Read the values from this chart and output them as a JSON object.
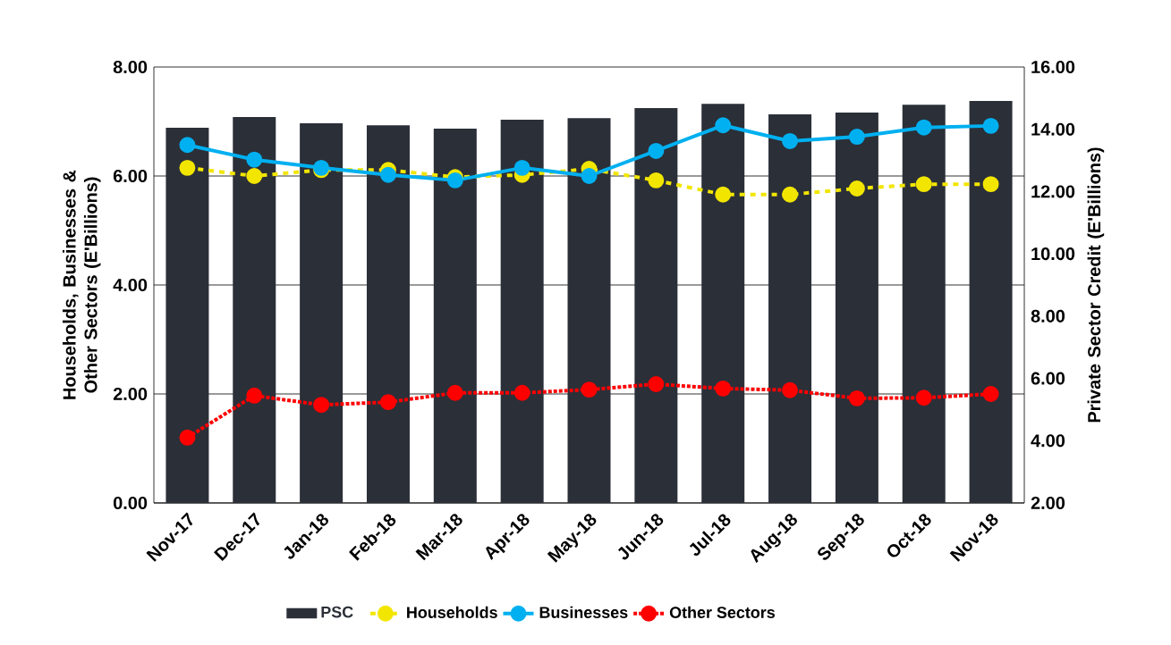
{
  "chart_data": {
    "type": "line",
    "categories": [
      "Nov-17",
      "Dec-17",
      "Jan-18",
      "Feb-18",
      "Mar-18",
      "Apr-18",
      "May-18",
      "Jun-18",
      "Jul-18",
      "Aug-18",
      "Sep-18",
      "Oct-18",
      "Nov-18"
    ],
    "series": [
      {
        "name": "PSC",
        "type": "bar",
        "axis": "y2",
        "color": "#2b2f38",
        "values": [
          14.05,
          14.39,
          14.19,
          14.13,
          14.02,
          14.31,
          14.36,
          14.68,
          14.82,
          14.48,
          14.54,
          14.79,
          14.91
        ]
      },
      {
        "name": "Households",
        "color": "#f2e600",
        "marker": "circle",
        "line_style": "dashed",
        "values": [
          6.15,
          6.0,
          6.11,
          6.11,
          5.98,
          6.02,
          6.13,
          5.92,
          5.66,
          5.66,
          5.77,
          5.85,
          5.85
        ]
      },
      {
        "name": "Businesses",
        "color": "#00b0f0",
        "marker": "circle",
        "line_style": "solid",
        "values": [
          6.57,
          6.3,
          6.15,
          6.02,
          5.92,
          6.15,
          6.0,
          6.46,
          6.93,
          6.64,
          6.72,
          6.89,
          6.92
        ]
      },
      {
        "name": "Other Sectors",
        "color": "#ff0000",
        "marker": "circle",
        "line_style": "dotted",
        "values": [
          1.2,
          1.97,
          1.8,
          1.85,
          2.02,
          2.02,
          2.08,
          2.18,
          2.1,
          2.07,
          1.92,
          1.93,
          2.0
        ]
      }
    ],
    "ylabel": "Households, Businesses & Other Sectors (E'Billions)",
    "y2label": "Private Sector Credit (E'Billions)",
    "ylim": [
      0,
      8
    ],
    "yticks": [
      {
        "value": 0,
        "label": "0.00"
      },
      {
        "value": 2,
        "label": "2.00"
      },
      {
        "value": 4,
        "label": "4.00"
      },
      {
        "value": 6,
        "label": "6.00"
      },
      {
        "value": 8,
        "label": "8.00"
      }
    ],
    "y2lim": [
      2,
      16
    ],
    "y2ticks": [
      {
        "value": 2,
        "label": "2.00"
      },
      {
        "value": 4,
        "label": "4.00"
      },
      {
        "value": 6,
        "label": "6.00"
      },
      {
        "value": 8,
        "label": "8.00"
      },
      {
        "value": 10,
        "label": "10.00"
      },
      {
        "value": 12,
        "label": "12.00"
      },
      {
        "value": 14,
        "label": "14.00"
      },
      {
        "value": 16,
        "label": "16.00"
      }
    ],
    "grid": "y",
    "legend": "bottom"
  }
}
